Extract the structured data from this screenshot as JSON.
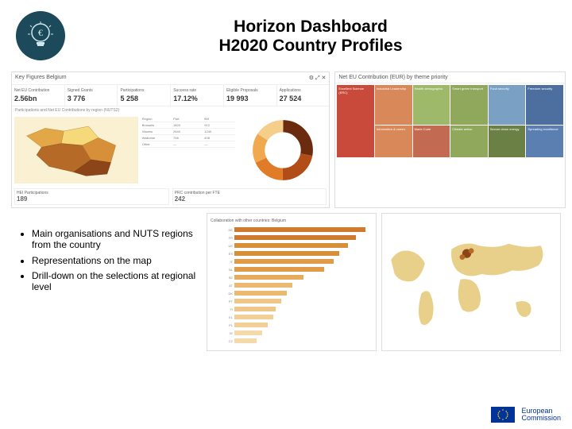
{
  "header": {
    "title_line1": "Horizon Dashboard",
    "title_line2": "H2020 Country Profiles",
    "icon_name": "euro-bulb"
  },
  "main_panel": {
    "title": "Key Figures Belgium",
    "kpis": [
      {
        "label": "Net EU Contribution",
        "value": "2.56bn"
      },
      {
        "label": "Signed Grants",
        "value": "3 776"
      },
      {
        "label": "Participations",
        "value": "5 258"
      },
      {
        "label": "Success rate",
        "value": "17.12%"
      },
      {
        "label": "Eligible Proposals",
        "value": "19 993"
      },
      {
        "label": "Applications",
        "value": "27 524"
      }
    ],
    "map": {
      "country": "Belgium",
      "region_colors": [
        "#f5d97a",
        "#e2a847",
        "#b56b27",
        "#8c4518",
        "#d88f3a"
      ],
      "background": "#faf0d2"
    },
    "donut": {
      "segments": [
        {
          "color": "#6b2b0e",
          "pct": 28
        },
        {
          "color": "#b24d17",
          "pct": 22
        },
        {
          "color": "#e07b28",
          "pct": 18
        },
        {
          "color": "#f0a94e",
          "pct": 16
        },
        {
          "color": "#f5cf8a",
          "pct": 16
        }
      ]
    },
    "summary_boxes": [
      {
        "label": "HEI Participations",
        "value": "189"
      },
      {
        "label": "PRC contribution per FTE",
        "value": "242"
      }
    ]
  },
  "treemap_panel": {
    "title": "Net EU Contribution (EUR) by theme priority",
    "cells": [
      {
        "label": "Excellent Science (ERC)",
        "color": "#c94a3b",
        "span": "1 / 1 / 3 / 2"
      },
      {
        "label": "Industrial Leadership",
        "color": "#d9885a",
        "span": "1 / 2 / 2 / 3"
      },
      {
        "label": "Health demographic",
        "color": "#9fb96a",
        "span": "1 / 3 / 2 / 4"
      },
      {
        "label": "Smart green transport",
        "color": "#8fa85c",
        "span": "1 / 4 / 2 / 5"
      },
      {
        "label": "Food security",
        "color": "#7aa0c4",
        "span": "1 / 5 / 2 / 6"
      },
      {
        "label": "Freedom security",
        "color": "#4d6fa0",
        "span": "1 / 6 / 2 / 7"
      },
      {
        "label": "Information & comm.",
        "color": "#d9885a",
        "span": "2 / 2 / 3 / 3"
      },
      {
        "label": "Marie Curie",
        "color": "#c36b52",
        "span": "2 / 3 / 3 / 4"
      },
      {
        "label": "Climate action",
        "color": "#8fa85c",
        "span": "2 / 4 / 3 / 5"
      },
      {
        "label": "Secure clean energy",
        "color": "#6b8045",
        "span": "2 / 5 / 3 / 6"
      },
      {
        "label": "Spreading excellence",
        "color": "#5a7fb0",
        "span": "2 / 6 / 3 / 7"
      }
    ]
  },
  "hbar_panel": {
    "title": "Collaboration with other countries: Belgium",
    "bars": [
      {
        "label": "DE",
        "value": 95,
        "color": "#cf7a2e"
      },
      {
        "label": "FR",
        "value": 88,
        "color": "#cf7a2e"
      },
      {
        "label": "UK",
        "value": 82,
        "color": "#d88f3a"
      },
      {
        "label": "ES",
        "value": 76,
        "color": "#d88f3a"
      },
      {
        "label": "IT",
        "value": 72,
        "color": "#e09a48"
      },
      {
        "label": "NL",
        "value": 65,
        "color": "#e09a48"
      },
      {
        "label": "SE",
        "value": 50,
        "color": "#e6ab5d"
      },
      {
        "label": "AT",
        "value": 42,
        "color": "#ecb972"
      },
      {
        "label": "DK",
        "value": 38,
        "color": "#ecb972"
      },
      {
        "label": "PT",
        "value": 34,
        "color": "#f0c588"
      },
      {
        "label": "FI",
        "value": 30,
        "color": "#f0c588"
      },
      {
        "label": "EL",
        "value": 28,
        "color": "#f3cf98"
      },
      {
        "label": "PL",
        "value": 24,
        "color": "#f3cf98"
      },
      {
        "label": "IE",
        "value": 20,
        "color": "#f6d9ab"
      },
      {
        "label": "CZ",
        "value": 16,
        "color": "#f6d9ab"
      }
    ]
  },
  "worldmap": {
    "land_color": "#e8cf8a",
    "ocean_color": "#ffffff",
    "hotspot_color": "#8c4518"
  },
  "bullets": [
    "Main organisations and NUTS regions from the country",
    "Representations on the map",
    "Drill-down on the selections at regional level"
  ],
  "footer": {
    "org_line1": "European",
    "org_line2": "Commission"
  }
}
